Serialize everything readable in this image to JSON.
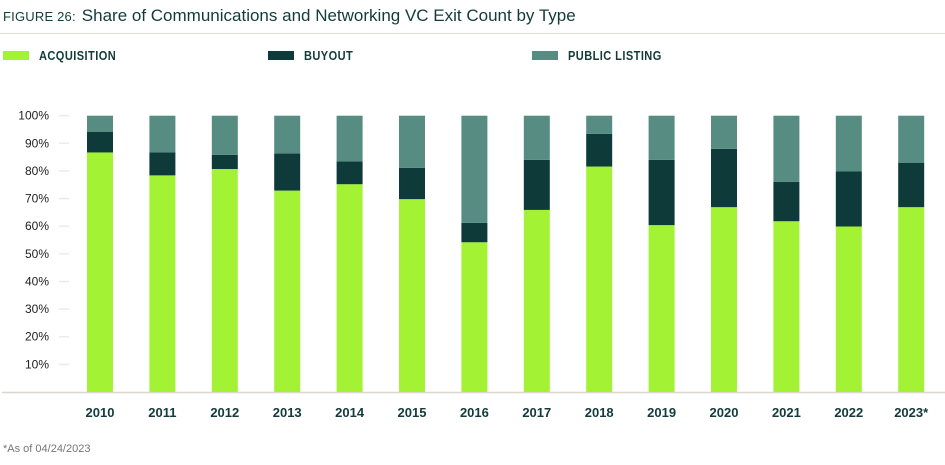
{
  "figure_label": "FIGURE 26:",
  "chart_data": {
    "type": "bar",
    "stacked": true,
    "title": "Share of Communications and Networking VC Exit Count by Type",
    "xlabel": "",
    "ylabel": "",
    "ylim": [
      0,
      100
    ],
    "yticks": [
      "10%",
      "20%",
      "30%",
      "40%",
      "50%",
      "60%",
      "70%",
      "80%",
      "90%",
      "100%"
    ],
    "grid": false,
    "legend_position": "top",
    "categories": [
      "2010",
      "2011",
      "2012",
      "2013",
      "2014",
      "2015",
      "2016",
      "2017",
      "2018",
      "2019",
      "2020",
      "2021",
      "2022",
      "2023*"
    ],
    "series": [
      {
        "name": "ACQUISITION",
        "color": "#a3f334",
        "values": [
          86.7,
          78.4,
          80.7,
          72.9,
          75.2,
          69.8,
          54.2,
          65.9,
          81.6,
          60.4,
          66.9,
          61.8,
          59.9,
          66.9
        ]
      },
      {
        "name": "BUYOUT",
        "color": "#0f3a3a",
        "values": [
          7.4,
          8.3,
          5.1,
          13.4,
          8.3,
          11.3,
          7.0,
          18.1,
          11.8,
          23.6,
          21.1,
          14.3,
          19.9,
          16.1
        ]
      },
      {
        "name": "PUBLIC LISTING",
        "color": "#578c82",
        "values": [
          5.9,
          13.3,
          14.2,
          13.7,
          16.5,
          18.9,
          38.8,
          16.0,
          6.6,
          16.0,
          12.0,
          23.9,
          20.2,
          17.0
        ]
      }
    ]
  },
  "footnote": "*As of 04/24/2023"
}
